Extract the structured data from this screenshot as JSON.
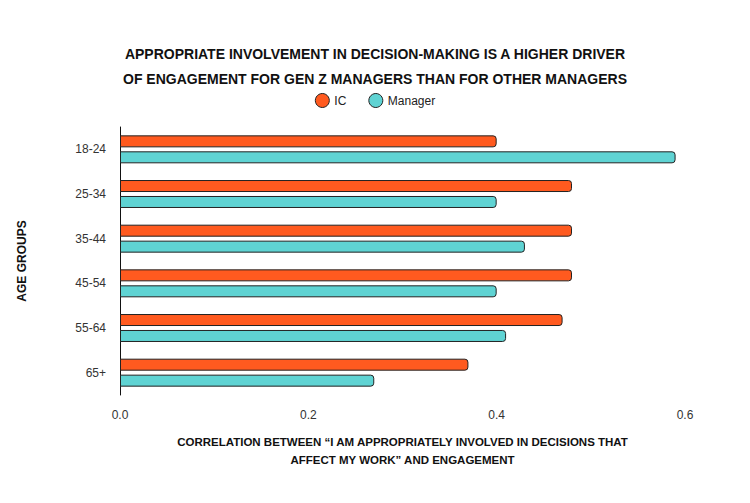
{
  "chart_data": {
    "type": "bar",
    "title": "APPROPRIATE INVOLVEMENT IN DECISION-MAKING IS A HIGHER DRIVER\nOF ENGAGEMENT FOR GEN Z MANAGERS THAN FOR OTHER MANAGERS",
    "orientation": "horizontal",
    "categories": [
      "18-24",
      "25-34",
      "35-44",
      "45-54",
      "55-64",
      "65+"
    ],
    "series": [
      {
        "name": "IC",
        "color": "#ff5a1f",
        "values": [
          0.4,
          0.48,
          0.48,
          0.48,
          0.47,
          0.37
        ]
      },
      {
        "name": "Manager",
        "color": "#5fd3d3",
        "values": [
          0.59,
          0.4,
          0.43,
          0.4,
          0.41,
          0.27
        ]
      }
    ],
    "x_label": "CORRELATION BETWEEN “I AM APPROPRIATELY INVOLVED IN DECISIONS THAT\nAFFECT MY WORK” AND ENGAGEMENT",
    "y_label": "AGE GROUPS",
    "xlim": [
      0,
      0.6
    ],
    "xticks": [
      {
        "value": 0,
        "label": "0.0"
      },
      0.2,
      0.4,
      0.6
    ],
    "grid": false,
    "legend": "top",
    "data_labels": false
  }
}
